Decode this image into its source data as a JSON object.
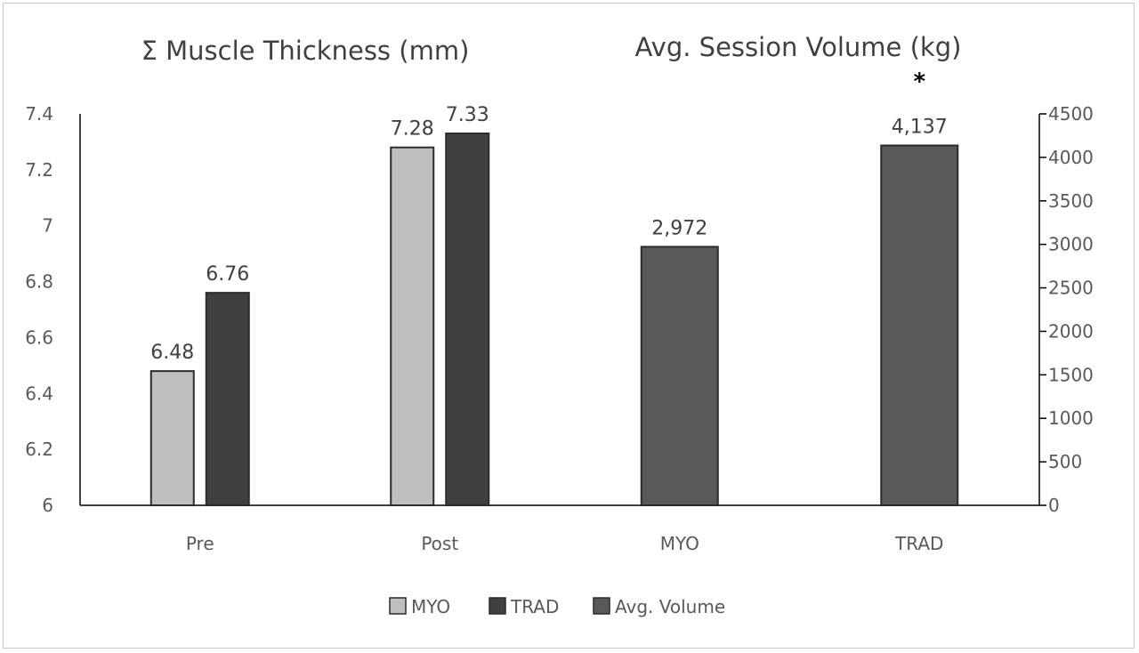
{
  "chart_data": {
    "type": "bar",
    "titles": [
      "Σ Muscle Thickness (mm)",
      "Avg. Session Volume (kg)"
    ],
    "categories": [
      "Pre",
      "Post",
      "MYO",
      "TRAD"
    ],
    "left_axis": {
      "ylim": [
        6,
        7.4
      ],
      "ticks": [
        "6",
        "6.2",
        "6.4",
        "6.6",
        "6.8",
        "7",
        "7.2",
        "7.4"
      ],
      "tick_values": [
        6,
        6.2,
        6.4,
        6.6,
        6.8,
        7,
        7.2,
        7.4
      ]
    },
    "right_axis": {
      "ylim": [
        0,
        4500
      ],
      "ticks": [
        "0",
        "500",
        "1000",
        "1500",
        "2000",
        "2500",
        "3000",
        "3500",
        "4000",
        "4500"
      ],
      "tick_values": [
        0,
        500,
        1000,
        1500,
        2000,
        2500,
        3000,
        3500,
        4000,
        4500
      ]
    },
    "series": [
      {
        "name": "MYO",
        "axis": "left",
        "color": "#bfbfbf",
        "points": [
          {
            "category": "Pre",
            "value": 6.48,
            "label": "6.48"
          },
          {
            "category": "Post",
            "value": 7.28,
            "label": "7.28"
          }
        ]
      },
      {
        "name": "TRAD",
        "axis": "left",
        "color": "#404040",
        "points": [
          {
            "category": "Pre",
            "value": 6.76,
            "label": "6.76"
          },
          {
            "category": "Post",
            "value": 7.33,
            "label": "7.33"
          }
        ]
      },
      {
        "name": "Avg. Volume",
        "axis": "right",
        "color": "#595959",
        "points": [
          {
            "category": "MYO",
            "value": 2972,
            "label": "2,972"
          },
          {
            "category": "TRAD",
            "value": 4137,
            "label": "4,137"
          }
        ]
      }
    ],
    "annotations": [
      {
        "text": "*",
        "category": "TRAD"
      }
    ],
    "legend_position": "bottom",
    "grid": false
  }
}
